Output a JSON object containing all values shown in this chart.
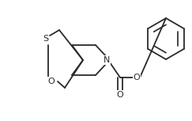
{
  "bg_color": "#ffffff",
  "line_color": "#2a2a2a",
  "lw": 1.3,
  "figsize": [
    2.43,
    1.53
  ],
  "dpi": 100,
  "xlim": [
    0,
    243
  ],
  "ylim": [
    0,
    153
  ]
}
